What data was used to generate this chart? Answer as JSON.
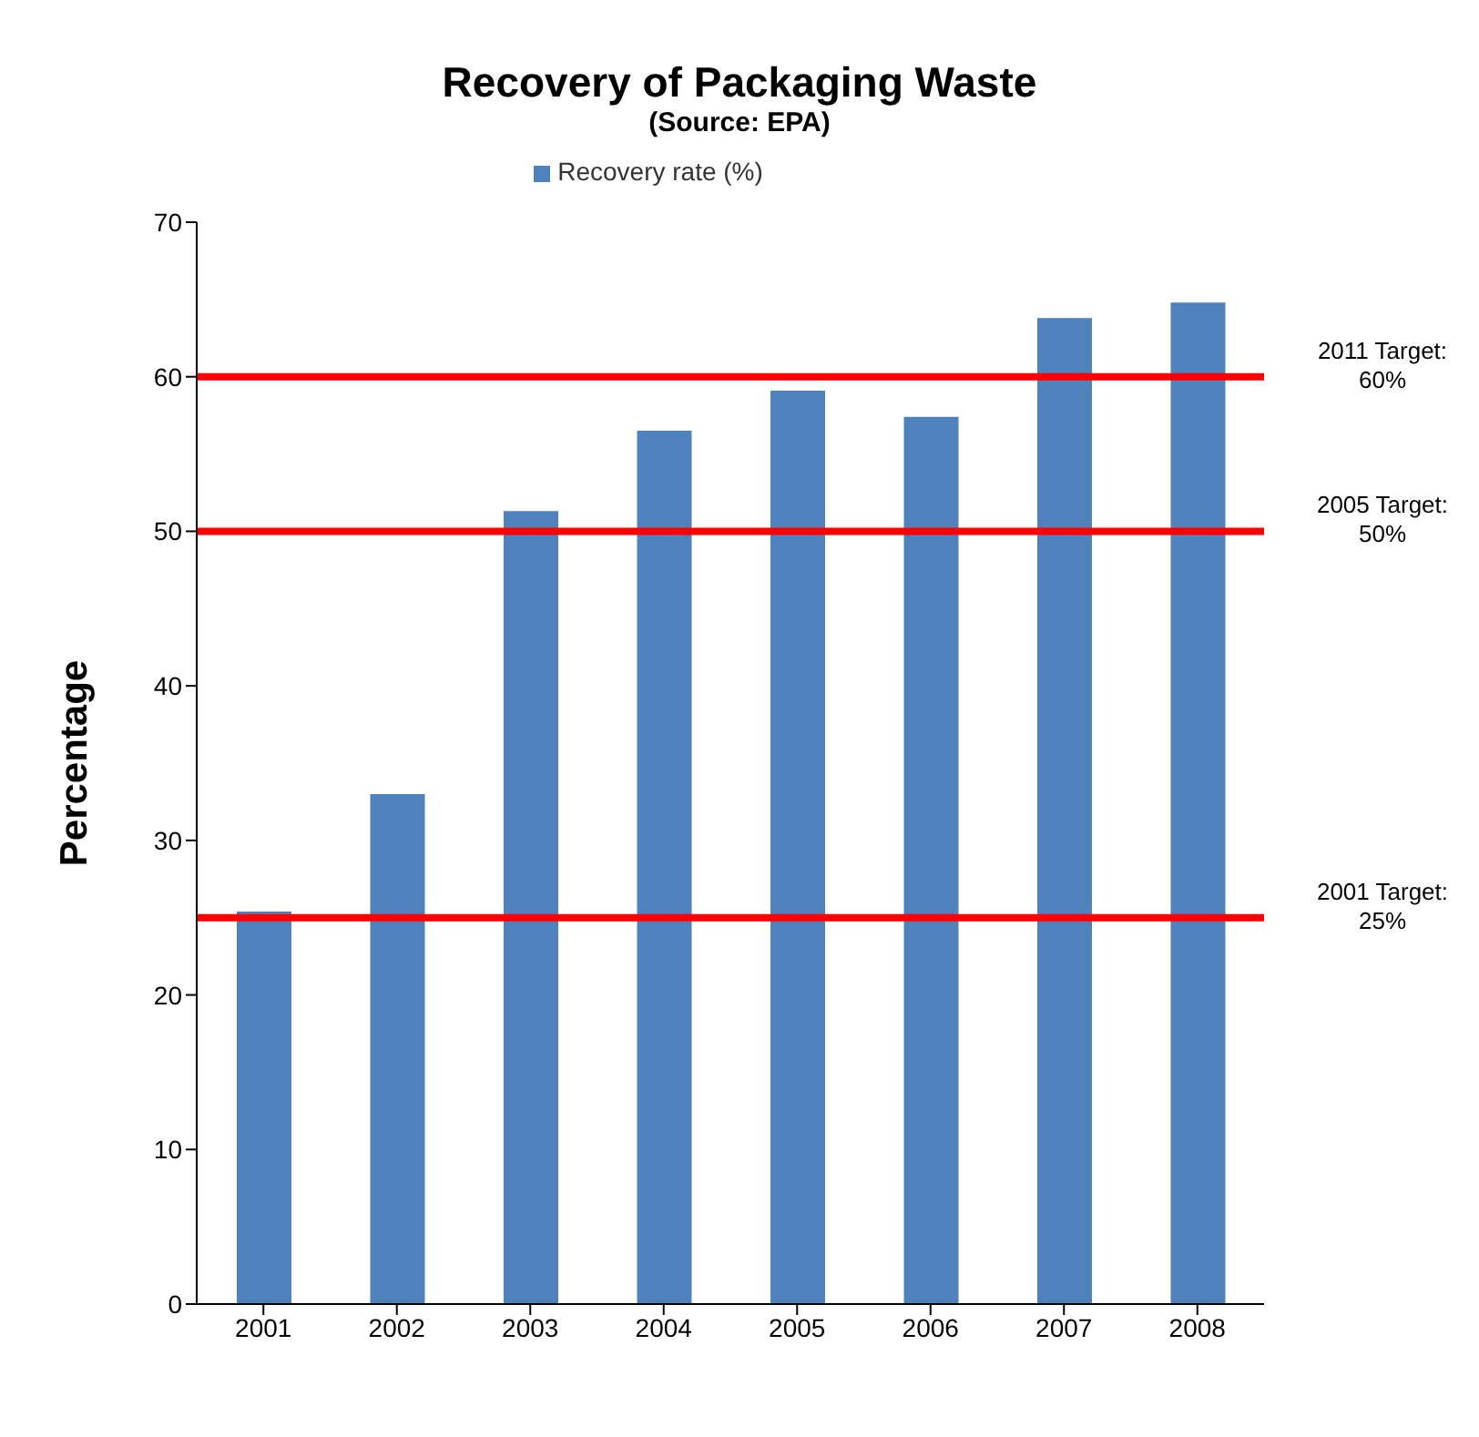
{
  "chart_data": {
    "type": "bar",
    "title": "Recovery of Packaging Waste",
    "subtitle": "(Source: EPA)",
    "ylabel": "Percentage",
    "categories": [
      "2001",
      "2002",
      "2003",
      "2004",
      "2005",
      "2006",
      "2007",
      "2008"
    ],
    "series": [
      {
        "name": "Recovery rate (%)",
        "color": "#4f81bd",
        "values": [
          25.4,
          33.0,
          51.3,
          56.5,
          59.1,
          57.4,
          63.8,
          64.8
        ]
      }
    ],
    "ylim": [
      0,
      70
    ],
    "yticks": [
      0,
      10,
      20,
      30,
      40,
      50,
      60,
      70
    ],
    "grid": false,
    "legend": "top",
    "ref_lines": [
      {
        "axis": "y",
        "value": 60,
        "label": "2011 Target: 60%",
        "color": "#ff0000"
      },
      {
        "axis": "y",
        "value": 50,
        "label": "2005 Target: 50%",
        "color": "#ff0000"
      },
      {
        "axis": "y",
        "value": 25,
        "label": "2001 Target: 25%",
        "color": "#ff0000"
      }
    ]
  }
}
